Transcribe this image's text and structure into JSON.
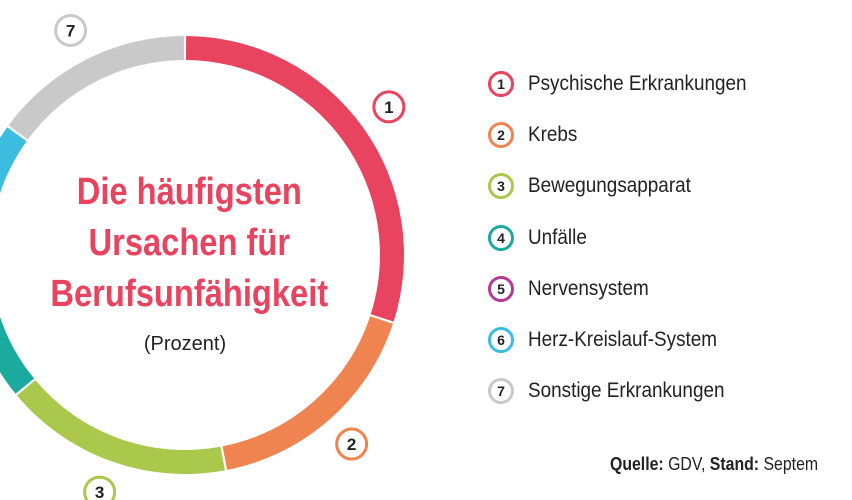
{
  "chart_data": {
    "type": "pie",
    "title": "Die häufigsten Ursachen für Berufsunfähigkeit",
    "title_lines": [
      "Die häufigsten",
      "Ursachen für",
      "Berufsunfähigkeit"
    ],
    "subtitle": "(Prozent)",
    "categories": [
      "Psychische Erkrankungen",
      "Krebs",
      "Bewegungsapparat",
      "Unfälle",
      "Nervensystem",
      "Herz-Kreislauf-System",
      "Sonstige Erkrankungen"
    ],
    "numbers": [
      "1",
      "2",
      "3",
      "4",
      "5",
      "6",
      "7"
    ],
    "values": [
      30,
      17,
      17,
      8,
      6,
      7,
      15
    ],
    "colors": [
      "#e8435f",
      "#ef8451",
      "#a9c84c",
      "#1aaa9e",
      "#b33a95",
      "#3cbde0",
      "#c9c9c9"
    ],
    "legend": "right"
  },
  "source": {
    "quelle_label": "Quelle:",
    "quelle_value": "GDV,",
    "stand_label": "Stand:",
    "stand_value": "Septem"
  }
}
